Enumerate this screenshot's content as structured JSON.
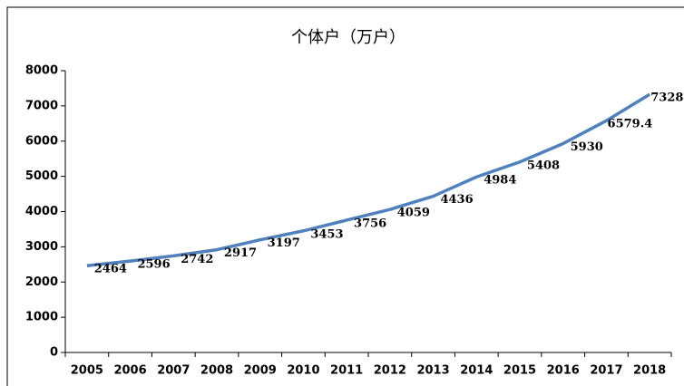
{
  "chart_data": {
    "type": "line",
    "title": "个体户（万户）",
    "categories": [
      "2005",
      "2006",
      "2007",
      "2008",
      "2009",
      "2010",
      "2011",
      "2012",
      "2013",
      "2014",
      "2015",
      "2016",
      "2017",
      "2018"
    ],
    "series": [
      {
        "name": "个体户",
        "color": "#4f81bd",
        "values": [
          2464,
          2596,
          2742,
          2917,
          3197,
          3453,
          3756,
          4059,
          4436,
          4984,
          5408,
          5930,
          6579.4,
          7328.0
        ],
        "value_labels": [
          "2464",
          "2596",
          "2742",
          "2917",
          "3197",
          "3453",
          "3756",
          "4059",
          "4436",
          "4984",
          "5408",
          "5930",
          "6579.4",
          "7328.0"
        ]
      }
    ],
    "ylim": [
      0,
      8000
    ],
    "yticks": [
      0,
      1000,
      2000,
      3000,
      4000,
      5000,
      6000,
      7000,
      8000
    ]
  }
}
